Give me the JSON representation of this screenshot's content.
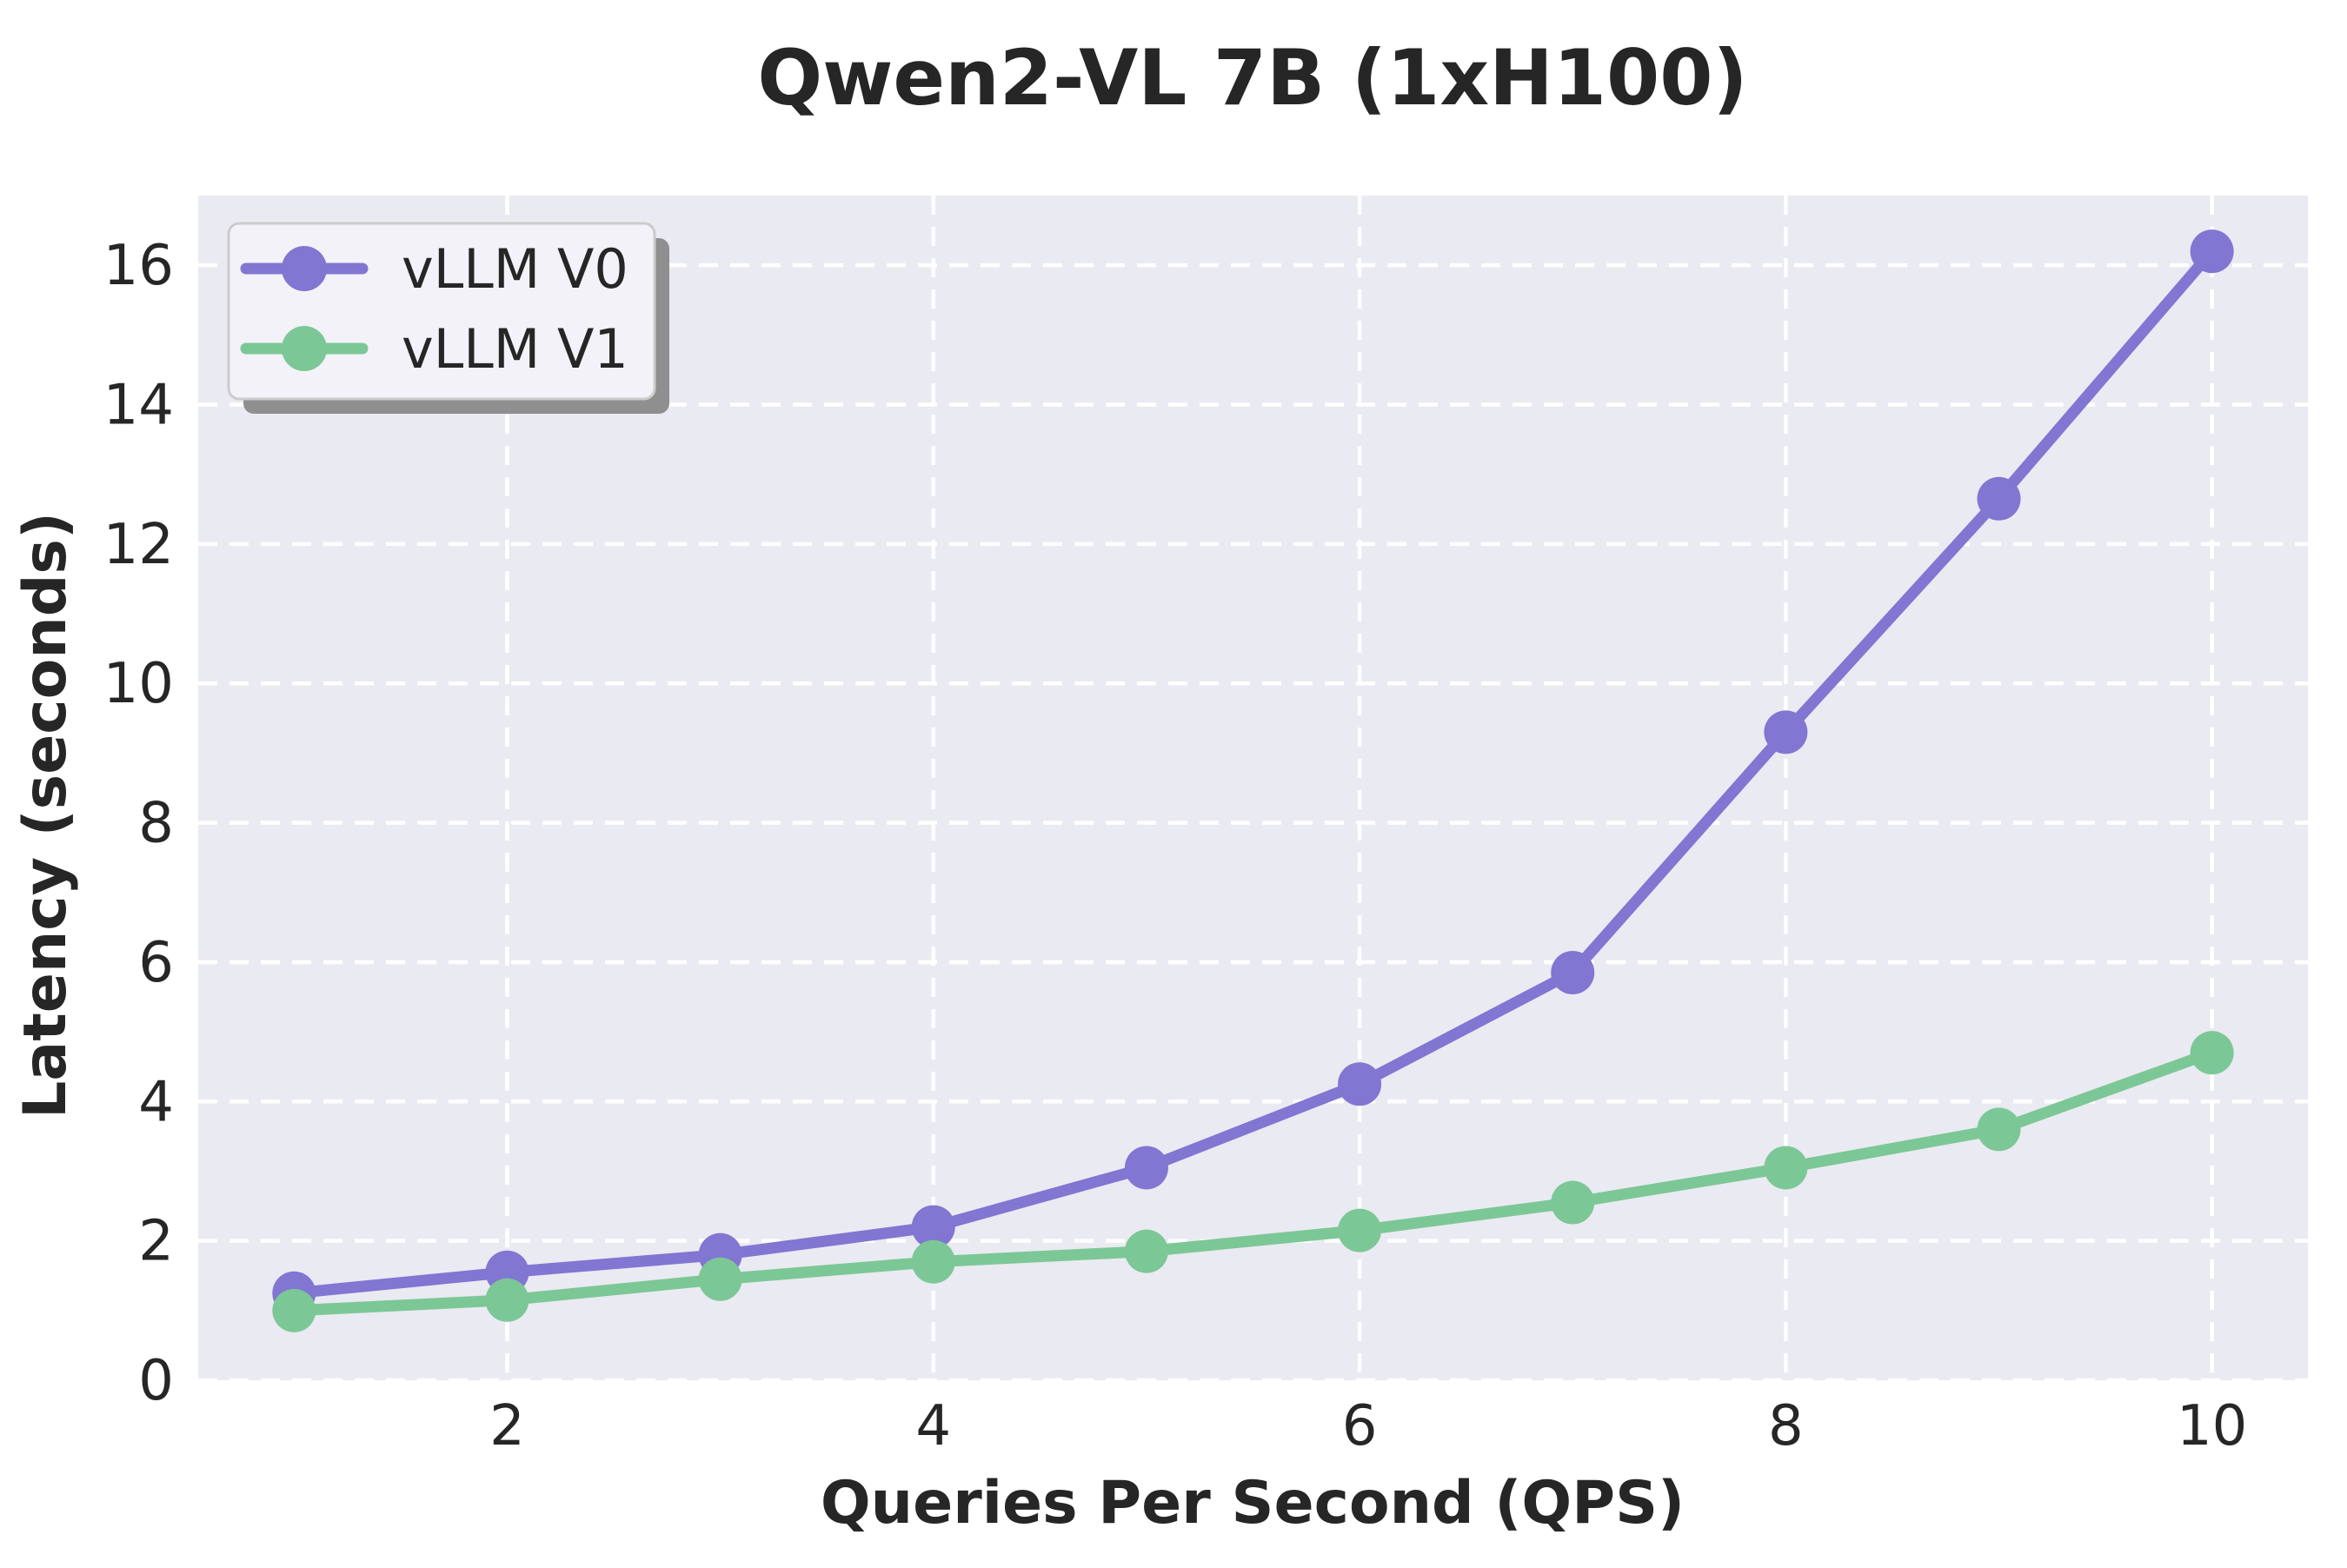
{
  "title": "Qwen2-VL 7B (1xH100)",
  "axes": {
    "xlabel": "Queries Per Second (QPS)",
    "ylabel": "Latency (seconds)"
  },
  "legend": {
    "position": "upper-left",
    "items": [
      {
        "label": "vLLM V0",
        "color": "#8176d2"
      },
      {
        "label": "vLLM V1",
        "color": "#7cc796"
      }
    ]
  },
  "colors": {
    "figure_background": "#ffffff",
    "plot_background": "#eaeaf2",
    "gridline": "#ffffff",
    "text": "#262626",
    "v0": "#8176d2",
    "v1": "#7cc796",
    "legend_background": "#f2f2f8",
    "legend_border": "#cccccc",
    "legend_shadow": "#8f8f8f"
  },
  "chart_data": {
    "type": "line",
    "title": "Qwen2-VL 7B (1xH100)",
    "xlabel": "Queries Per Second (QPS)",
    "ylabel": "Latency (seconds)",
    "x": [
      1,
      2,
      3,
      4,
      5,
      6,
      7,
      8,
      9,
      10
    ],
    "series": [
      {
        "name": "vLLM V0",
        "color": "#8176d2",
        "values": [
          1.25,
          1.55,
          1.8,
          2.2,
          3.05,
          4.25,
          5.85,
          9.3,
          12.65,
          16.2
        ]
      },
      {
        "name": "vLLM V1",
        "color": "#7cc796",
        "values": [
          1.0,
          1.15,
          1.45,
          1.7,
          1.85,
          2.15,
          2.55,
          3.05,
          3.6,
          4.7
        ]
      }
    ],
    "xticks": [
      2,
      4,
      6,
      8,
      10
    ],
    "yticks": [
      0,
      2,
      4,
      6,
      8,
      10,
      12,
      14,
      16
    ],
    "xlim": [
      0.55,
      10.45
    ],
    "ylim": [
      0,
      17
    ],
    "grid": "dashed-white-on",
    "legend_position": "upper-left"
  }
}
